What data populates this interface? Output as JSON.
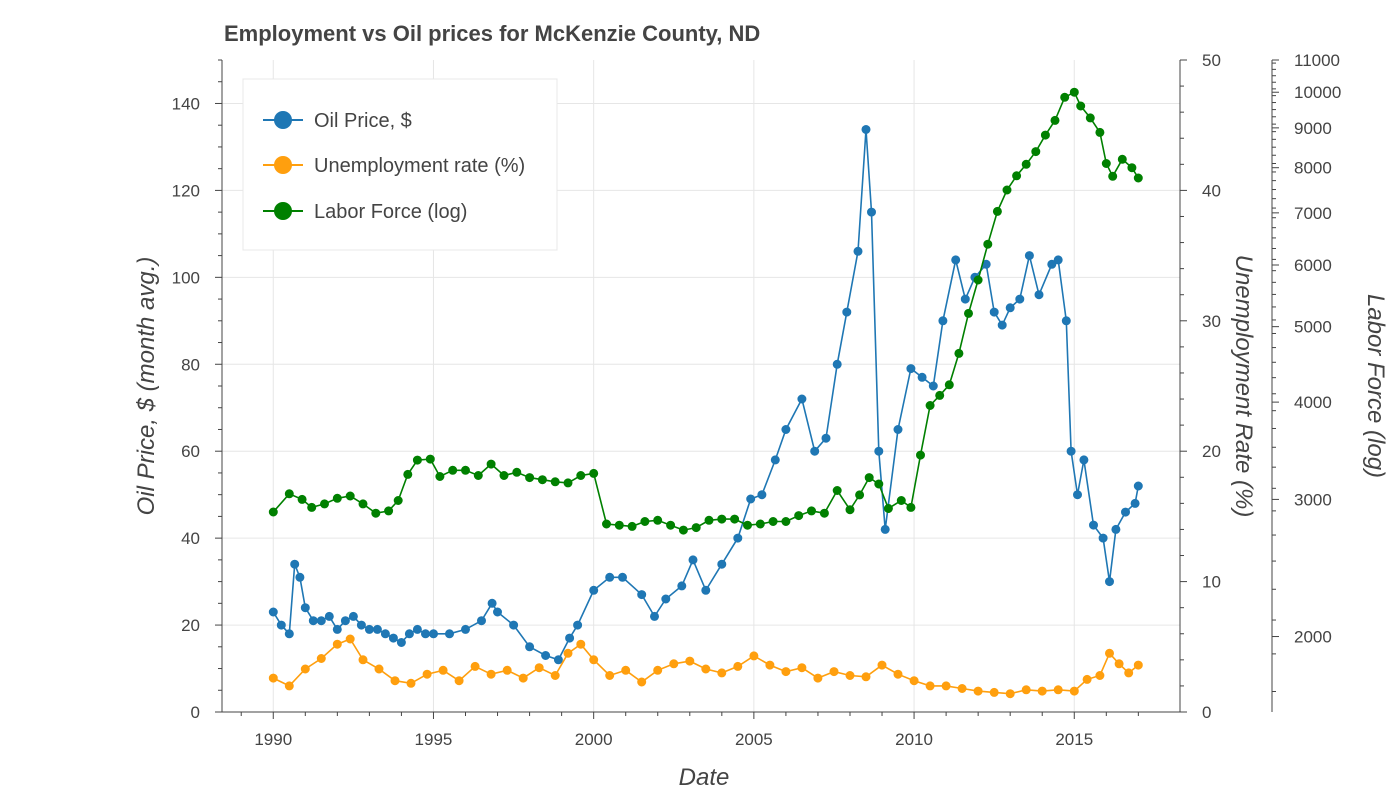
{
  "chart_data": {
    "type": "line",
    "title": "Employment vs Oil prices for McKenzie County, ND",
    "xlabel": "Date",
    "x_ticks": [
      "1990",
      "1995",
      "2000",
      "2005",
      "2010",
      "2015"
    ],
    "axes": {
      "left": {
        "label": "Oil Price, $ (month avg.)",
        "ylim": [
          0,
          150
        ],
        "ticks": [
          "0",
          "20",
          "40",
          "60",
          "80",
          "100",
          "120",
          "140"
        ]
      },
      "right1": {
        "label": "Unemployment Rate (%)",
        "ylim": [
          0,
          50
        ],
        "ticks": [
          "0",
          "10",
          "20",
          "30",
          "40",
          "50"
        ]
      },
      "right2": {
        "label": "Labor Force (log)",
        "scale": "log",
        "ylim": [
          1600,
          11000
        ],
        "ticks": [
          "2000",
          "3000",
          "4000",
          "5000",
          "6000",
          "7000",
          "8000",
          "9000",
          "10000",
          "11000"
        ]
      }
    },
    "legend_position": "top-left",
    "grid": true,
    "series": [
      {
        "name": "Oil Price, $",
        "color": "#1f77b4",
        "axis": "left",
        "x": [
          1990.0,
          1990.25,
          1990.5,
          1990.67,
          1990.83,
          1991.0,
          1991.25,
          1991.5,
          1991.75,
          1992.0,
          1992.25,
          1992.5,
          1992.75,
          1993.0,
          1993.25,
          1993.5,
          1993.75,
          1994.0,
          1994.25,
          1994.5,
          1994.75,
          1995.0,
          1995.5,
          1996.0,
          1996.5,
          1996.83,
          1997.0,
          1997.5,
          1998.0,
          1998.5,
          1998.9,
          1999.25,
          1999.5,
          2000.0,
          2000.5,
          2000.9,
          2001.5,
          2001.9,
          2002.25,
          2002.75,
          2003.1,
          2003.5,
          2004.0,
          2004.5,
          2004.9,
          2005.25,
          2005.67,
          2006.0,
          2006.5,
          2006.9,
          2007.25,
          2007.6,
          2007.9,
          2008.25,
          2008.5,
          2008.67,
          2008.9,
          2009.1,
          2009.5,
          2009.9,
          2010.25,
          2010.6,
          2010.9,
          2011.3,
          2011.6,
          2011.9,
          2012.25,
          2012.5,
          2012.75,
          2013.0,
          2013.3,
          2013.6,
          2013.9,
          2014.3,
          2014.5,
          2014.75,
          2014.9,
          2015.1,
          2015.3,
          2015.6,
          2015.9,
          2016.1,
          2016.3,
          2016.6,
          2016.9,
          2017.0
        ],
        "values": [
          23,
          20,
          18,
          34,
          31,
          24,
          21,
          21,
          22,
          19,
          21,
          22,
          20,
          19,
          19,
          18,
          17,
          16,
          18,
          19,
          18,
          18,
          18,
          19,
          21,
          25,
          23,
          20,
          15,
          13,
          12,
          17,
          20,
          28,
          31,
          31,
          27,
          22,
          26,
          29,
          35,
          28,
          34,
          40,
          49,
          50,
          58,
          65,
          72,
          60,
          63,
          80,
          92,
          106,
          134,
          115,
          60,
          42,
          65,
          79,
          77,
          75,
          90,
          104,
          95,
          100,
          103,
          92,
          89,
          93,
          95,
          105,
          96,
          103,
          104,
          90,
          60,
          50,
          58,
          43,
          40,
          30,
          42,
          46,
          48,
          52
        ]
      },
      {
        "name": "Unemployment rate (%)",
        "color": "#ff9f0e",
        "axis": "right1",
        "x": [
          1990.0,
          1990.5,
          1991.0,
          1991.5,
          1992.0,
          1992.4,
          1992.8,
          1993.3,
          1993.8,
          1994.3,
          1994.8,
          1995.3,
          1995.8,
          1996.3,
          1996.8,
          1997.3,
          1997.8,
          1998.3,
          1998.8,
          1999.2,
          1999.6,
          2000.0,
          2000.5,
          2001.0,
          2001.5,
          2002.0,
          2002.5,
          2003.0,
          2003.5,
          2004.0,
          2004.5,
          2005.0,
          2005.5,
          2006.0,
          2006.5,
          2007.0,
          2007.5,
          2008.0,
          2008.5,
          2009.0,
          2009.5,
          2010.0,
          2010.5,
          2011.0,
          2011.5,
          2012.0,
          2012.5,
          2013.0,
          2013.5,
          2014.0,
          2014.5,
          2015.0,
          2015.4,
          2015.8,
          2016.1,
          2016.4,
          2016.7,
          2017.0
        ],
        "values": [
          2.6,
          2.0,
          3.3,
          4.1,
          5.2,
          5.6,
          4.0,
          3.3,
          2.4,
          2.2,
          2.9,
          3.2,
          2.4,
          3.5,
          2.9,
          3.2,
          2.6,
          3.4,
          2.8,
          4.5,
          5.2,
          4.0,
          2.8,
          3.2,
          2.3,
          3.2,
          3.7,
          3.9,
          3.3,
          3.0,
          3.5,
          4.3,
          3.6,
          3.1,
          3.4,
          2.6,
          3.1,
          2.8,
          2.7,
          3.6,
          2.9,
          2.4,
          2.0,
          2.0,
          1.8,
          1.6,
          1.5,
          1.4,
          1.7,
          1.6,
          1.7,
          1.6,
          2.5,
          2.8,
          4.5,
          3.7,
          3.0,
          3.6
        ]
      },
      {
        "name": "Labor Force (log)",
        "color": "#008000",
        "axis": "right2",
        "x": [
          1990.0,
          1990.5,
          1990.9,
          1991.2,
          1991.6,
          1992.0,
          1992.4,
          1992.8,
          1993.2,
          1993.6,
          1993.9,
          1994.2,
          1994.5,
          1994.9,
          1995.2,
          1995.6,
          1996.0,
          1996.4,
          1996.8,
          1997.2,
          1997.6,
          1998.0,
          1998.4,
          1998.8,
          1999.2,
          1999.6,
          2000.0,
          2000.4,
          2000.8,
          2001.2,
          2001.6,
          2002.0,
          2002.4,
          2002.8,
          2003.2,
          2003.6,
          2004.0,
          2004.4,
          2004.8,
          2005.2,
          2005.6,
          2006.0,
          2006.4,
          2006.8,
          2007.2,
          2007.6,
          2008.0,
          2008.3,
          2008.6,
          2008.9,
          2009.2,
          2009.6,
          2009.9,
          2010.2,
          2010.5,
          2010.8,
          2011.1,
          2011.4,
          2011.7,
          2012.0,
          2012.3,
          2012.6,
          2012.9,
          2013.2,
          2013.5,
          2013.8,
          2014.1,
          2014.4,
          2014.7,
          2015.0,
          2015.2,
          2015.5,
          2015.8,
          2016.0,
          2016.2,
          2016.5,
          2016.8,
          2017.0
        ],
        "values": [
          2890,
          3050,
          3000,
          2930,
          2960,
          3010,
          3030,
          2960,
          2880,
          2900,
          2990,
          3230,
          3370,
          3380,
          3210,
          3270,
          3270,
          3220,
          3330,
          3220,
          3250,
          3200,
          3180,
          3160,
          3150,
          3220,
          3240,
          2790,
          2780,
          2770,
          2810,
          2820,
          2780,
          2740,
          2760,
          2820,
          2830,
          2830,
          2780,
          2790,
          2810,
          2810,
          2860,
          2900,
          2880,
          3080,
          2910,
          3040,
          3200,
          3140,
          2920,
          2990,
          2930,
          3420,
          3960,
          4080,
          4210,
          4620,
          5200,
          5740,
          6380,
          7030,
          7490,
          7810,
          8080,
          8390,
          8810,
          9200,
          9850,
          10000,
          9600,
          9270,
          8880,
          8100,
          7800,
          8200,
          8000,
          7760
        ]
      }
    ]
  }
}
